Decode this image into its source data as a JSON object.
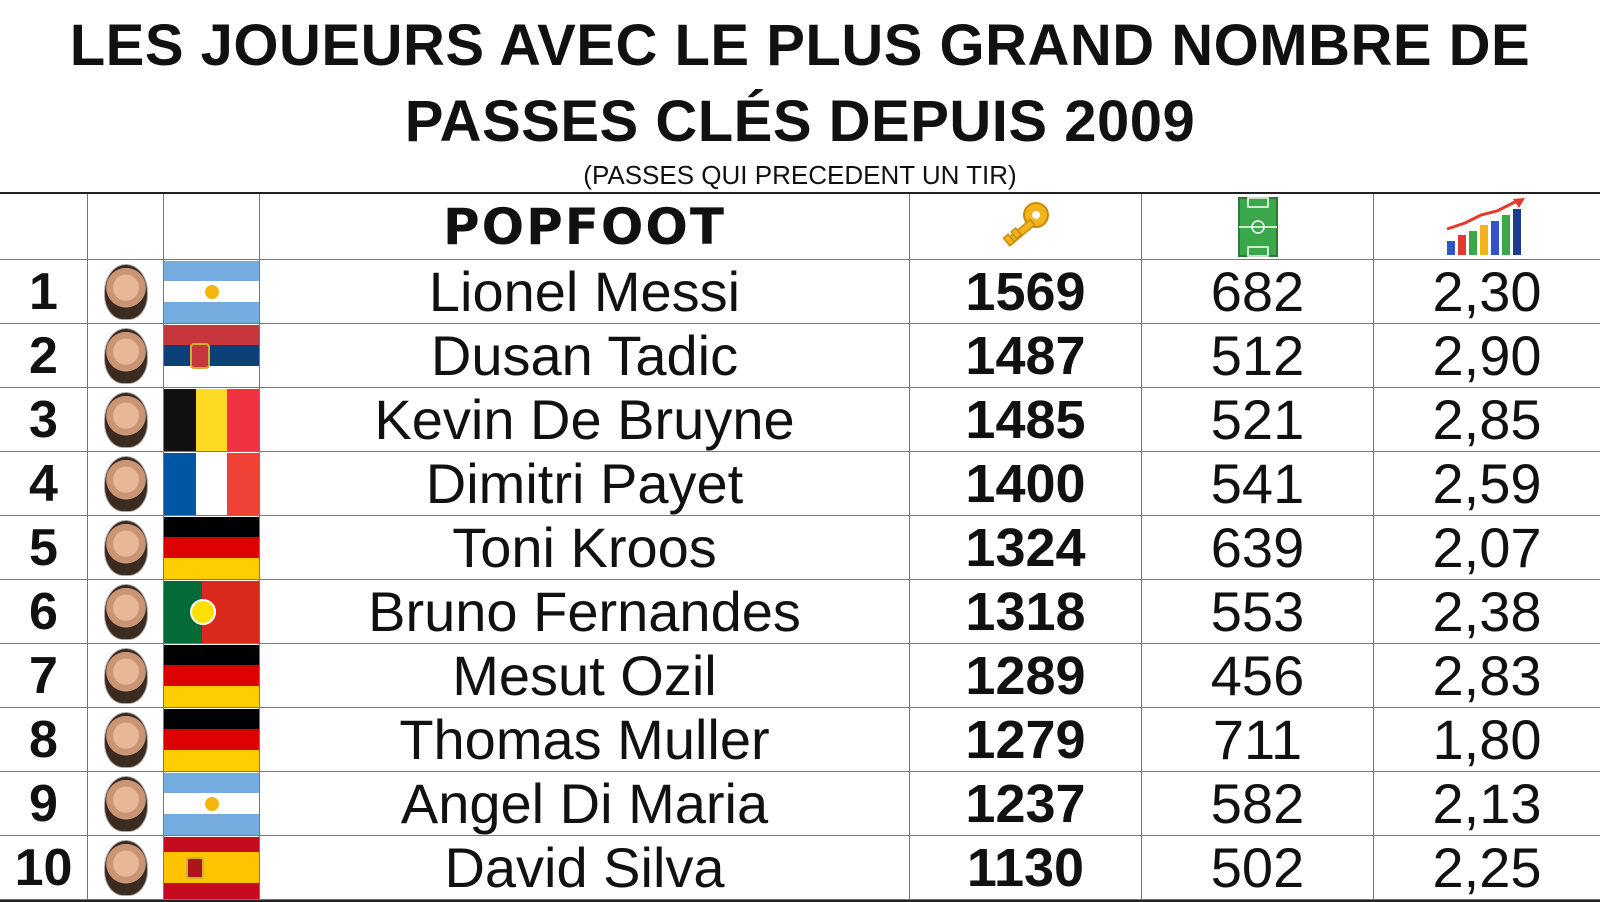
{
  "title_line1": "LES JOUEURS AVEC LE PLUS GRAND NOMBRE DE",
  "title_line2": "PASSES CLÉS DEPUIS 2009",
  "subtitle": "(PASSES QUI PRECEDENT UN TIR)",
  "header": {
    "logo_text": "POPFOOT",
    "icons": [
      "key-icon",
      "football-pitch-icon",
      "growth-chart-icon"
    ]
  },
  "colors": {
    "key": "#f2b31b",
    "pitch": "#3aa84a",
    "chart_arrow": "#e33b2b"
  },
  "rows": [
    {
      "rank": "1",
      "name": "Lionel Messi",
      "keys": "1569",
      "games": "682",
      "ratio": "2,30",
      "flag": "argentina"
    },
    {
      "rank": "2",
      "name": "Dusan Tadic",
      "keys": "1487",
      "games": "512",
      "ratio": "2,90",
      "flag": "serbia"
    },
    {
      "rank": "3",
      "name": "Kevin De Bruyne",
      "keys": "1485",
      "games": "521",
      "ratio": "2,85",
      "flag": "belgium"
    },
    {
      "rank": "4",
      "name": "Dimitri Payet",
      "keys": "1400",
      "games": "541",
      "ratio": "2,59",
      "flag": "france"
    },
    {
      "rank": "5",
      "name": "Toni Kroos",
      "keys": "1324",
      "games": "639",
      "ratio": "2,07",
      "flag": "germany"
    },
    {
      "rank": "6",
      "name": "Bruno Fernandes",
      "keys": "1318",
      "games": "553",
      "ratio": "2,38",
      "flag": "portugal"
    },
    {
      "rank": "7",
      "name": "Mesut Ozil",
      "keys": "1289",
      "games": "456",
      "ratio": "2,83",
      "flag": "germany"
    },
    {
      "rank": "8",
      "name": "Thomas Muller",
      "keys": "1279",
      "games": "711",
      "ratio": "1,80",
      "flag": "germany"
    },
    {
      "rank": "9",
      "name": "Angel Di Maria",
      "keys": "1237",
      "games": "582",
      "ratio": "2,13",
      "flag": "argentina"
    },
    {
      "rank": "10",
      "name": "David Silva",
      "keys": "1130",
      "games": "502",
      "ratio": "2,25",
      "flag": "spain"
    }
  ]
}
